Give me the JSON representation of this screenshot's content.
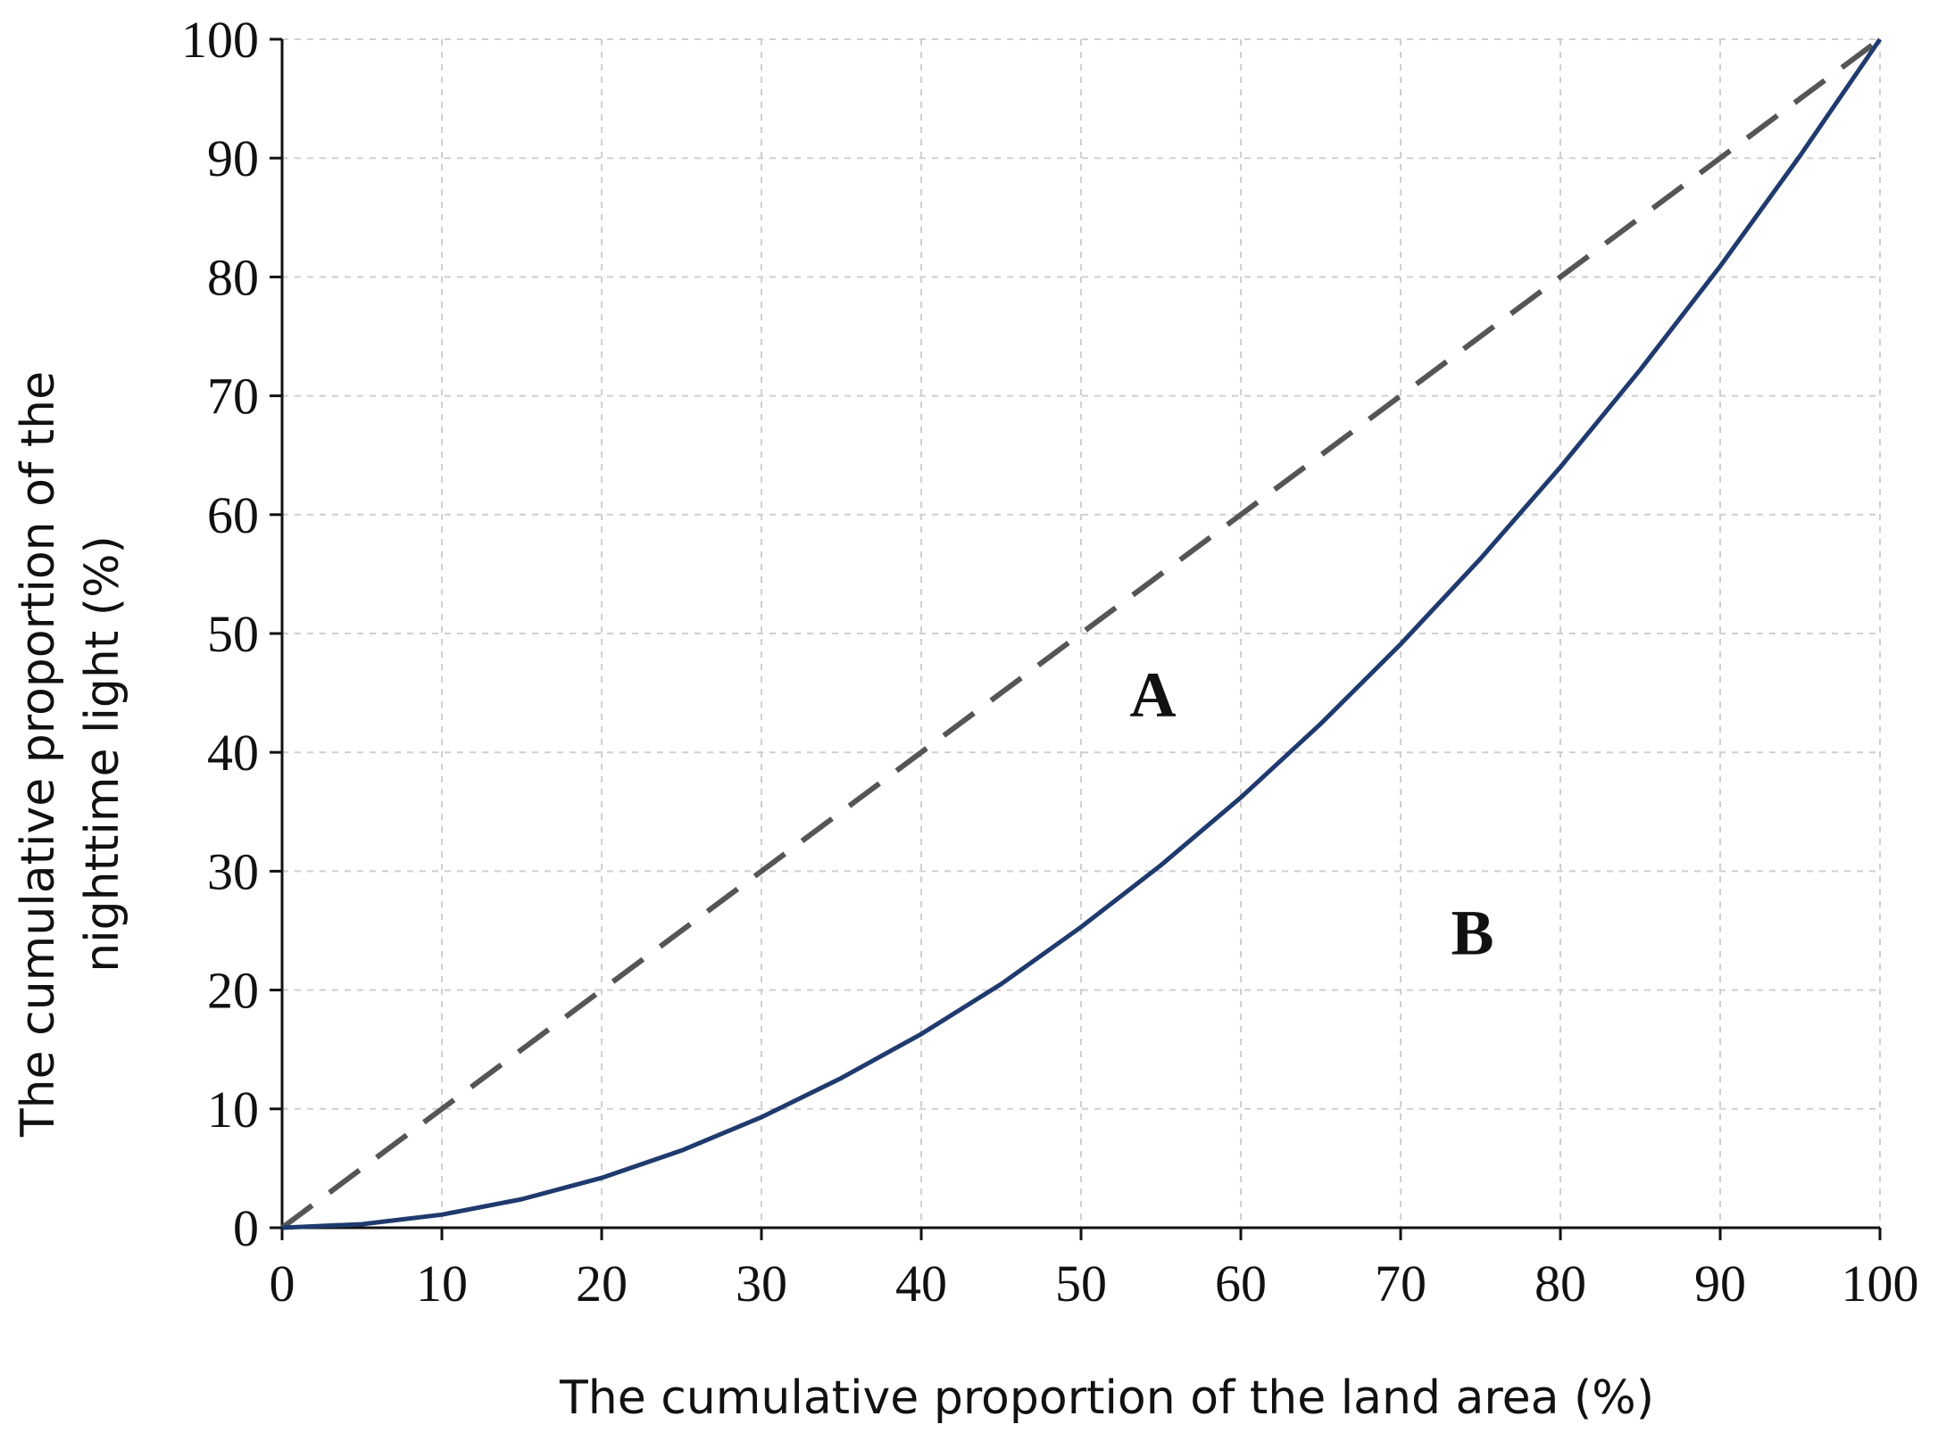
{
  "chart_data": {
    "type": "line",
    "title": "",
    "xlabel": "The cumulative proportion of the land area (%)",
    "ylabel_lines": [
      "The cumulative proportion of the",
      "nighttime light (%)"
    ],
    "xlim": [
      0,
      100
    ],
    "ylim": [
      0,
      100
    ],
    "x_ticks": [
      "0",
      "10",
      "20",
      "30",
      "40",
      "50",
      "60",
      "70",
      "80",
      "90",
      "100"
    ],
    "y_ticks": [
      "0",
      "10",
      "20",
      "30",
      "40",
      "50",
      "60",
      "70",
      "80",
      "90",
      "100"
    ],
    "grid": true,
    "legend": "none",
    "series": [
      {
        "style": "dashed",
        "color": "#555555",
        "x": [
          0,
          100
        ],
        "y": [
          0,
          100
        ]
      },
      {
        "style": "solid",
        "color": "#1f3a6e",
        "x": [
          0,
          5,
          10,
          15,
          20,
          25,
          30,
          35,
          40,
          45,
          50,
          55,
          60,
          65,
          70,
          75,
          80,
          85,
          90,
          95,
          100
        ],
        "y": [
          0,
          0.3,
          1.1,
          2.4,
          4.2,
          6.5,
          9.3,
          12.6,
          16.3,
          20.5,
          25.3,
          30.5,
          36.2,
          42.4,
          49.1,
          56.3,
          64.0,
          72.2,
          80.9,
          90.2,
          100
        ]
      }
    ],
    "annotations": [
      {
        "text": "A",
        "x": 54.5,
        "y": 43
      },
      {
        "text": "B",
        "x": 74.5,
        "y": 23
      }
    ]
  }
}
